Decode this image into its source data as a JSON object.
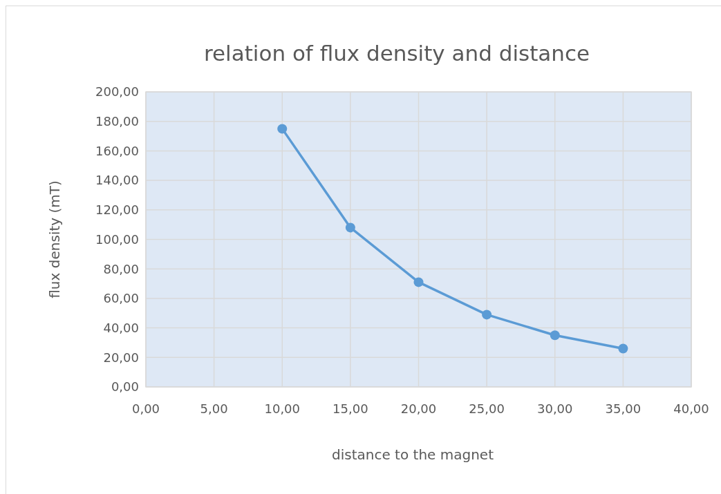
{
  "chart_data": {
    "type": "line",
    "title": "relation of flux density and distance",
    "xlabel": "distance to the magnet",
    "ylabel": "flux density (mT)",
    "x": [
      10,
      15,
      20,
      25,
      30,
      35
    ],
    "series": [
      {
        "color": "#5b9bd5",
        "values": [
          175,
          108,
          71,
          49,
          35,
          26
        ]
      }
    ],
    "xlim": [
      0,
      40
    ],
    "xticks": [
      {
        "value": 0,
        "label": "0,00"
      },
      {
        "value": 5,
        "label": "5,00"
      },
      {
        "value": 10,
        "label": "10,00"
      },
      {
        "value": 15,
        "label": "15,00"
      },
      {
        "value": 20,
        "label": "20,00"
      },
      {
        "value": 25,
        "label": "25,00"
      },
      {
        "value": 30,
        "label": "30,00"
      },
      {
        "value": 35,
        "label": "35,00"
      },
      {
        "value": 40,
        "label": "40,00"
      }
    ],
    "ylim": [
      0,
      200
    ],
    "yticks": [
      {
        "value": 0,
        "label": "0,00"
      },
      {
        "value": 20,
        "label": "20,00"
      },
      {
        "value": 40,
        "label": "40,00"
      },
      {
        "value": 60,
        "label": "60,00"
      },
      {
        "value": 80,
        "label": "80,00"
      },
      {
        "value": 100,
        "label": "100,00"
      },
      {
        "value": 120,
        "label": "120,00"
      },
      {
        "value": 140,
        "label": "140,00"
      },
      {
        "value": 160,
        "label": "160,00"
      },
      {
        "value": 180,
        "label": "180,00"
      },
      {
        "value": 200,
        "label": "200,00"
      }
    ],
    "grid": true,
    "marker": "circle",
    "line_style": "solid"
  }
}
